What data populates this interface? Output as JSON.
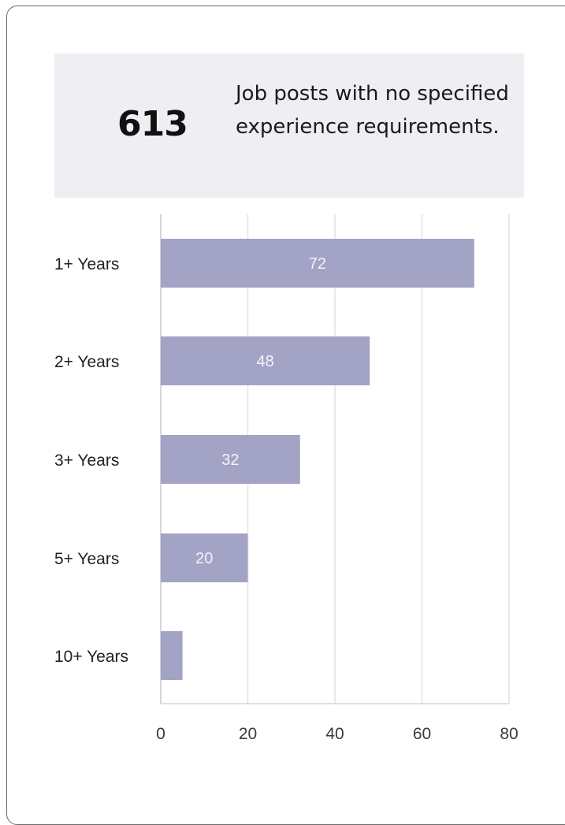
{
  "stat": {
    "value": "613",
    "description": "Job posts with no specified experience requirements."
  },
  "chart_data": {
    "type": "bar",
    "orientation": "horizontal",
    "categories": [
      "1+ Years",
      "2+ Years",
      "3+ Years",
      "5+ Years",
      "10+ Years"
    ],
    "values": [
      72,
      48,
      32,
      20,
      5
    ],
    "data_labels": [
      "72",
      "48",
      "32",
      "20",
      ""
    ],
    "xlim": [
      0,
      80
    ],
    "xticks": [
      "0",
      "20",
      "40",
      "60",
      "80"
    ],
    "grid": true,
    "bar_color": "#a3a3c6",
    "title": "",
    "xlabel": "",
    "ylabel": ""
  }
}
